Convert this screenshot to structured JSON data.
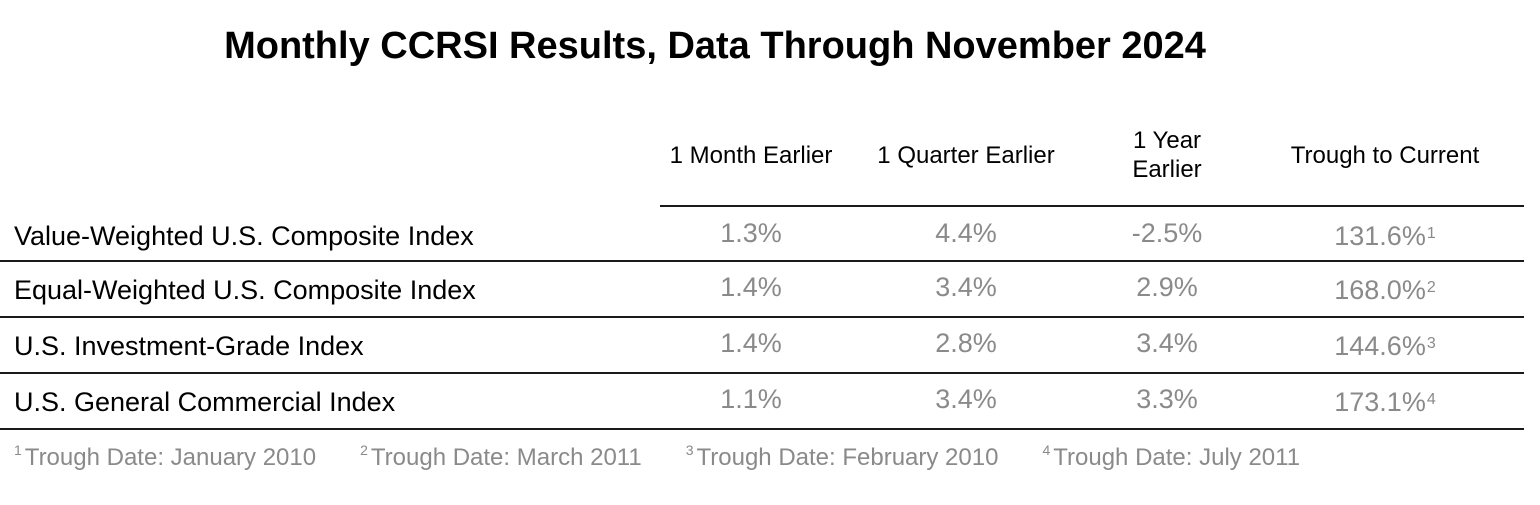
{
  "title": "Monthly CCRSI Results, Data Through November 2024",
  "columns": [
    {
      "label": "1 Month Earlier"
    },
    {
      "label": "1 Quarter Earlier"
    },
    {
      "label_line1": "1 Year",
      "label_line2": "Earlier"
    },
    {
      "label": "Trough to Current"
    }
  ],
  "rows": [
    {
      "label": "Value-Weighted U.S. Composite Index",
      "values": [
        "1.3%",
        "4.4%",
        "-2.5%",
        "131.6%"
      ],
      "note": "1"
    },
    {
      "label": "Equal-Weighted U.S. Composite Index",
      "values": [
        "1.4%",
        "3.4%",
        "2.9%",
        "168.0%"
      ],
      "note": "2"
    },
    {
      "label": "U.S. Investment-Grade Index",
      "values": [
        "1.4%",
        "2.8%",
        "3.4%",
        "144.6%"
      ],
      "note": "3"
    },
    {
      "label": "U.S. General Commercial Index",
      "values": [
        "1.1%",
        "3.4%",
        "3.3%",
        "173.1%"
      ],
      "note": "4"
    }
  ],
  "footnotes": [
    {
      "num": "1",
      "text": "Trough Date: January 2010"
    },
    {
      "num": "2",
      "text": "Trough Date: March 2011"
    },
    {
      "num": "3",
      "text": "Trough Date: February 2010"
    },
    {
      "num": "4",
      "text": "Trough Date: July 2011"
    }
  ],
  "colors": {
    "text": "#000000",
    "values": "#8a8a8a",
    "rules": "#1a1a1a"
  }
}
